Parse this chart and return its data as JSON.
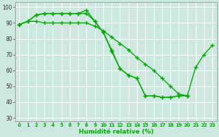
{
  "title": "",
  "xlabel": "Humidité relative (%)",
  "ylabel": "",
  "bg_color": "#cce8e0",
  "grid_color": "#ffffff",
  "line_color": "#00aa00",
  "marker": "+",
  "markersize": 4,
  "linewidth": 1.0,
  "xlim": [
    -0.5,
    23.5
  ],
  "ylim": [
    28,
    103
  ],
  "yticks": [
    30,
    40,
    50,
    60,
    70,
    80,
    90,
    100
  ],
  "xticks": [
    0,
    1,
    2,
    3,
    4,
    5,
    6,
    7,
    8,
    9,
    10,
    11,
    12,
    13,
    14,
    15,
    16,
    17,
    18,
    19,
    20,
    21,
    22,
    23
  ],
  "series": [
    [
      89,
      91,
      95,
      96,
      96,
      96,
      96,
      96,
      98,
      91,
      84,
      73,
      61,
      57,
      55,
      44,
      44,
      43,
      43,
      44,
      44,
      62,
      70,
      76
    ],
    [
      89,
      91,
      95,
      96,
      96,
      96,
      96,
      96,
      96,
      91,
      84,
      72,
      61,
      57,
      55,
      44,
      44,
      43,
      43,
      44,
      44,
      null,
      null,
      null
    ],
    [
      89,
      91,
      91,
      90,
      90,
      90,
      90,
      90,
      90,
      88,
      85,
      81,
      77,
      73,
      68,
      64,
      60,
      55,
      50,
      45,
      44,
      null,
      null,
      null
    ]
  ]
}
